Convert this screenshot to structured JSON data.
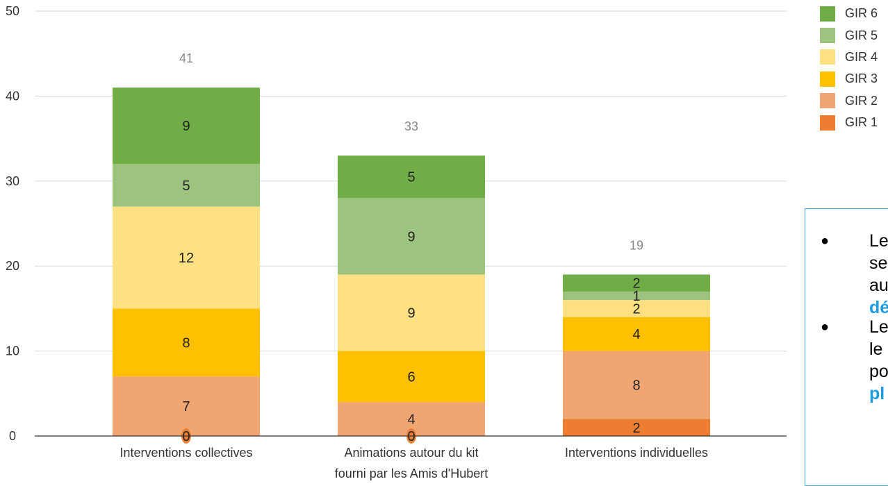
{
  "chart_data": {
    "type": "bar",
    "stacked": true,
    "categories": [
      [
        "Interventions collectives"
      ],
      [
        "Animations autour du kit",
        "fourni par les Amis d'Hubert"
      ],
      [
        "Interventions individuelles"
      ]
    ],
    "series": [
      {
        "name": "GIR 1",
        "color": "#ED7D31",
        "values": [
          0,
          0,
          2
        ]
      },
      {
        "name": "GIR 2",
        "color": "#F0A672",
        "values": [
          7,
          4,
          8
        ]
      },
      {
        "name": "GIR 3",
        "color": "#FFC000",
        "values": [
          8,
          6,
          4
        ]
      },
      {
        "name": "GIR 4",
        "color": "#FFE083",
        "values": [
          12,
          9,
          2
        ]
      },
      {
        "name": "GIR 5",
        "color": "#9DC47E",
        "values": [
          5,
          9,
          1
        ]
      },
      {
        "name": "GIR 6",
        "color": "#70AD47",
        "values": [
          9,
          5,
          2
        ]
      }
    ],
    "totals": [
      41,
      33,
      19
    ],
    "ylim": [
      0,
      50
    ],
    "yticks": [
      0,
      10,
      20,
      30,
      40,
      50
    ],
    "grid": true,
    "legend_position": "right"
  },
  "note": {
    "items": [
      {
        "bullet": "●",
        "lines": [
          {
            "text": "Le",
            "highlight": false
          },
          {
            "text": "se",
            "highlight": false
          },
          {
            "text": "au",
            "highlight": false
          },
          {
            "text": "dé",
            "highlight": true
          }
        ]
      },
      {
        "bullet": "●",
        "lines": [
          {
            "text": "Le",
            "highlight": false
          },
          {
            "text": "le",
            "highlight": false
          },
          {
            "text": "po",
            "highlight": false
          },
          {
            "text": "pl",
            "highlight": true
          }
        ]
      }
    ]
  }
}
